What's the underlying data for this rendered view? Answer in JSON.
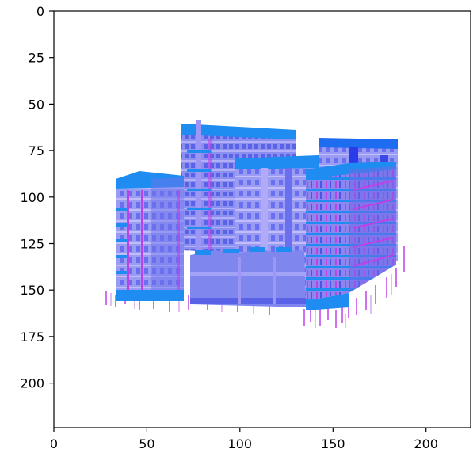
{
  "axes": {
    "x_range": [
      0,
      224
    ],
    "y_range": [
      0,
      224
    ],
    "y_inverted": true,
    "x_ticks": [
      0,
      50,
      100,
      150,
      200
    ],
    "y_ticks": [
      0,
      25,
      50,
      75,
      100,
      125,
      150,
      175,
      200
    ],
    "grid": false
  },
  "image": {
    "subject": "building-cluster-normal-map",
    "colors": {
      "face_main": "#7f86ee",
      "face_light": "#a9a6f7",
      "roof": "#1e8cf0",
      "window": "#5a63e8",
      "accent": "#b24cf0",
      "edge_magenta": "#c040e8"
    }
  }
}
